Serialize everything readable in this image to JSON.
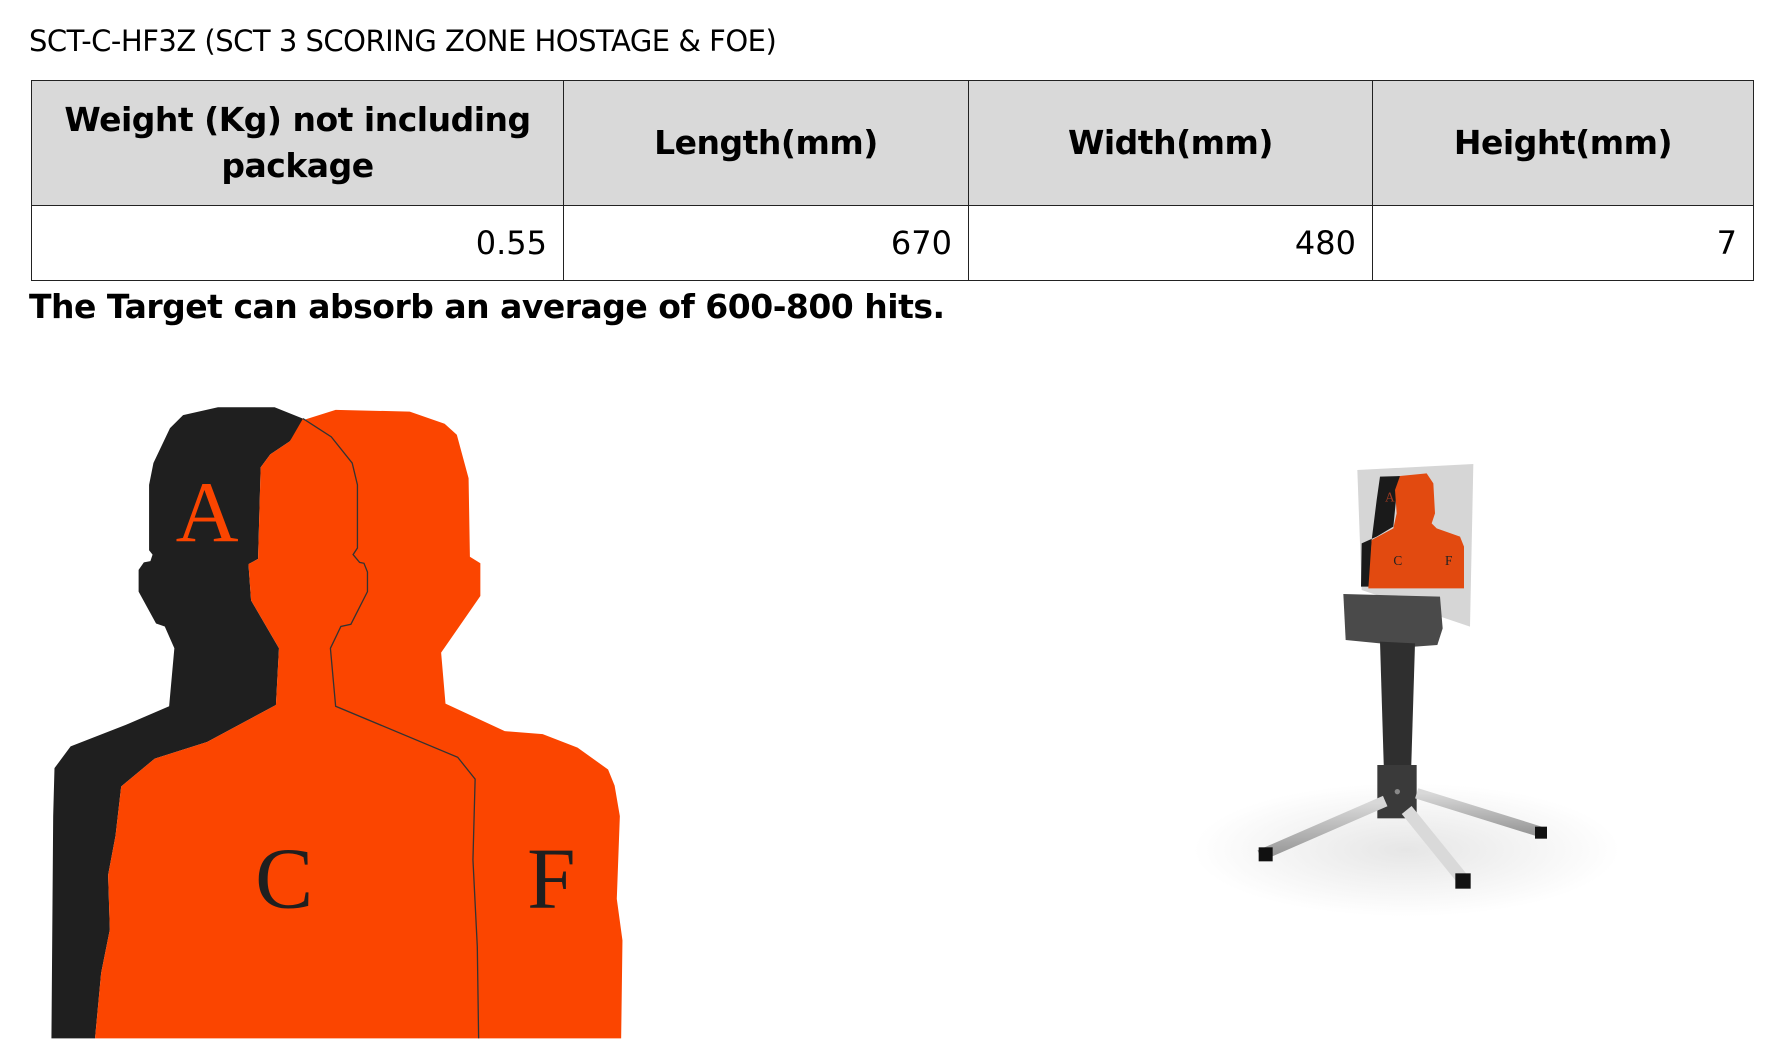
{
  "title": "SCT-C-HF3Z (SCT 3 SCORING ZONE HOSTAGE & FOE)",
  "spec_table": {
    "headers": [
      "Weight (Kg) not including package",
      "Length(mm)",
      "Width(mm)",
      "Height(mm)"
    ],
    "rows": [
      [
        "0.55",
        "670",
        "480",
        "7"
      ]
    ]
  },
  "note": "The Target can absorb an average of 600-800 hits.",
  "target_diagram": {
    "zone_labels": {
      "hostage": "A",
      "center": "C",
      "foe": "F"
    },
    "colors": {
      "hostage": "#1f1f1f",
      "foe": "#fb4500"
    }
  },
  "product_photo": {
    "zone_labels": {
      "hostage": "A",
      "center": "C",
      "foe": "F"
    }
  }
}
